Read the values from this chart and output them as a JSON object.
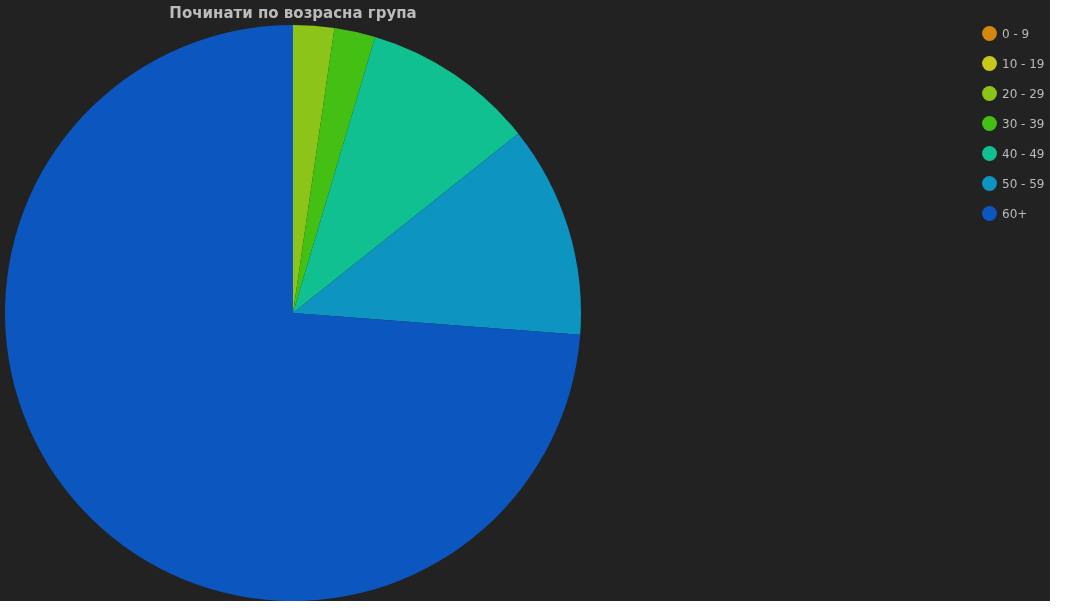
{
  "chart_data": {
    "type": "pie",
    "title": "Починати по возрасна група",
    "categories": [
      "0 - 9",
      "10 - 19",
      "20 - 29",
      "30 - 39",
      "40 - 49",
      "50 - 59",
      "60+"
    ],
    "values": [
      0,
      0,
      2.3,
      2.3,
      9.7,
      11.9,
      73.8
    ],
    "colors": [
      "#d4870f",
      "#c8c81a",
      "#8cc41a",
      "#44c014",
      "#10c090",
      "#0e94c0",
      "#0c56c0"
    ],
    "legend": "right"
  }
}
